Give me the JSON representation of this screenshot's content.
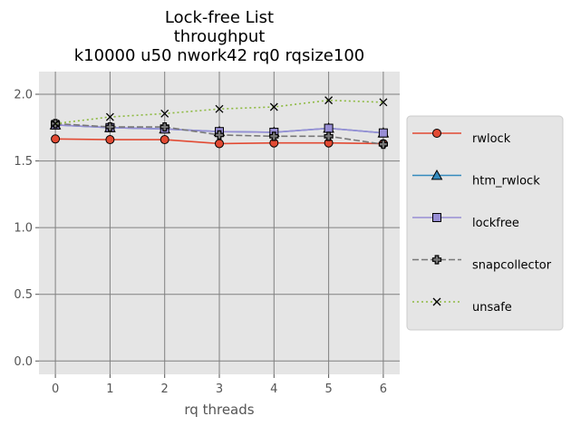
{
  "chart_data": {
    "type": "line",
    "title_lines": [
      "Lock-free List",
      "throughput",
      "k10000 u50 nwork42 rq0 rqsize100"
    ],
    "xlabel": "rq threads",
    "ylabel": "",
    "x": [
      0,
      1,
      2,
      3,
      4,
      5,
      6
    ],
    "xticks": [
      "0",
      "1",
      "2",
      "3",
      "4",
      "5",
      "6"
    ],
    "yticks": [
      "0.0",
      "0.5",
      "1.0",
      "1.5",
      "2.0"
    ],
    "xlim": [
      -0.3,
      6.3
    ],
    "ylim": [
      -0.1,
      2.17
    ],
    "grid": true,
    "legend_position": "right",
    "series": [
      {
        "name": "rwlock",
        "color": "#e24a33",
        "marker": "circle",
        "line_style": "solid",
        "values": [
          1.665,
          1.66,
          1.66,
          1.63,
          1.635,
          1.635,
          1.63
        ]
      },
      {
        "name": "htm_rwlock",
        "color": "#348abd",
        "marker": "triangle",
        "line_style": "solid",
        "values": [
          1.77,
          1.75,
          1.74,
          1.72,
          1.715,
          1.745,
          1.71
        ]
      },
      {
        "name": "lockfree",
        "color": "#988ed5",
        "marker": "square",
        "line_style": "solid",
        "values": [
          1.77,
          1.75,
          1.74,
          1.72,
          1.715,
          1.745,
          1.71
        ]
      },
      {
        "name": "snapcollector",
        "color": "#777777",
        "marker": "plus",
        "line_style": "dashed",
        "values": [
          1.78,
          1.755,
          1.755,
          1.695,
          1.685,
          1.685,
          1.625
        ]
      },
      {
        "name": "unsafe",
        "color": "#8eba42",
        "marker": "x",
        "line_style": "dotted",
        "values": [
          1.78,
          1.83,
          1.855,
          1.89,
          1.905,
          1.955,
          1.94
        ]
      }
    ]
  }
}
